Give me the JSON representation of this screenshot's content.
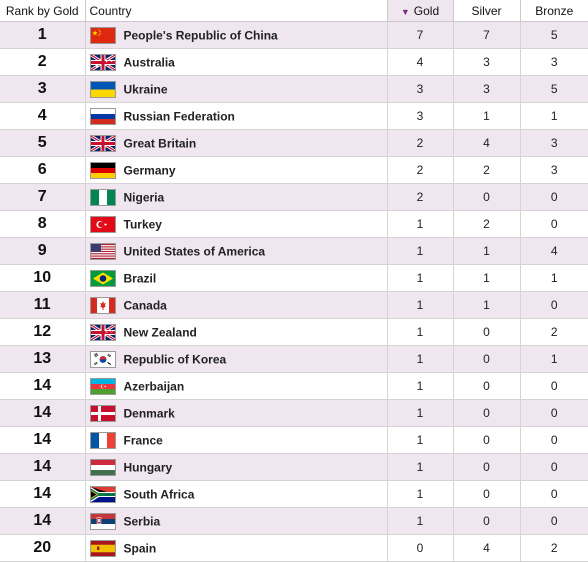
{
  "table": {
    "headers": {
      "rank": "Rank by Gold",
      "country": "Country",
      "gold": "Gold",
      "silver": "Silver",
      "bronze": "Bronze"
    },
    "sort": {
      "column": "gold",
      "direction": "descending",
      "icon": "sort-desc-icon"
    },
    "rows": [
      {
        "rank": "1",
        "country": "People's Republic of China",
        "flag": "china-flag-icon",
        "gold": "7",
        "silver": "7",
        "bronze": "5"
      },
      {
        "rank": "2",
        "country": "Australia",
        "flag": "australia-flag-icon",
        "gold": "4",
        "silver": "3",
        "bronze": "3"
      },
      {
        "rank": "3",
        "country": "Ukraine",
        "flag": "ukraine-flag-icon",
        "gold": "3",
        "silver": "3",
        "bronze": "5"
      },
      {
        "rank": "4",
        "country": "Russian Federation",
        "flag": "russia-flag-icon",
        "gold": "3",
        "silver": "1",
        "bronze": "1"
      },
      {
        "rank": "5",
        "country": "Great Britain",
        "flag": "great-britain-flag-icon",
        "gold": "2",
        "silver": "4",
        "bronze": "3"
      },
      {
        "rank": "6",
        "country": "Germany",
        "flag": "germany-flag-icon",
        "gold": "2",
        "silver": "2",
        "bronze": "3"
      },
      {
        "rank": "7",
        "country": "Nigeria",
        "flag": "nigeria-flag-icon",
        "gold": "2",
        "silver": "0",
        "bronze": "0"
      },
      {
        "rank": "8",
        "country": "Turkey",
        "flag": "turkey-flag-icon",
        "gold": "1",
        "silver": "2",
        "bronze": "0"
      },
      {
        "rank": "9",
        "country": "United States of America",
        "flag": "usa-flag-icon",
        "gold": "1",
        "silver": "1",
        "bronze": "4"
      },
      {
        "rank": "10",
        "country": "Brazil",
        "flag": "brazil-flag-icon",
        "gold": "1",
        "silver": "1",
        "bronze": "1"
      },
      {
        "rank": "11",
        "country": "Canada",
        "flag": "canada-flag-icon",
        "gold": "1",
        "silver": "1",
        "bronze": "0"
      },
      {
        "rank": "12",
        "country": "New Zealand",
        "flag": "new-zealand-flag-icon",
        "gold": "1",
        "silver": "0",
        "bronze": "2"
      },
      {
        "rank": "13",
        "country": "Republic of Korea",
        "flag": "korea-flag-icon",
        "gold": "1",
        "silver": "0",
        "bronze": "1"
      },
      {
        "rank": "14",
        "country": "Azerbaijan",
        "flag": "azerbaijan-flag-icon",
        "gold": "1",
        "silver": "0",
        "bronze": "0"
      },
      {
        "rank": "14",
        "country": "Denmark",
        "flag": "denmark-flag-icon",
        "gold": "1",
        "silver": "0",
        "bronze": "0"
      },
      {
        "rank": "14",
        "country": "France",
        "flag": "france-flag-icon",
        "gold": "1",
        "silver": "0",
        "bronze": "0"
      },
      {
        "rank": "14",
        "country": "Hungary",
        "flag": "hungary-flag-icon",
        "gold": "1",
        "silver": "0",
        "bronze": "0"
      },
      {
        "rank": "14",
        "country": "South Africa",
        "flag": "south-africa-flag-icon",
        "gold": "1",
        "silver": "0",
        "bronze": "0"
      },
      {
        "rank": "14",
        "country": "Serbia",
        "flag": "serbia-flag-icon",
        "gold": "1",
        "silver": "0",
        "bronze": "0"
      },
      {
        "rank": "20",
        "country": "Spain",
        "flag": "spain-flag-icon",
        "gold": "0",
        "silver": "4",
        "bronze": "2"
      }
    ]
  },
  "colors": {
    "alt_row_bg": "#efe6ef",
    "sort_accent": "#7a2f7e",
    "grid_line": "#d4d4d4"
  }
}
